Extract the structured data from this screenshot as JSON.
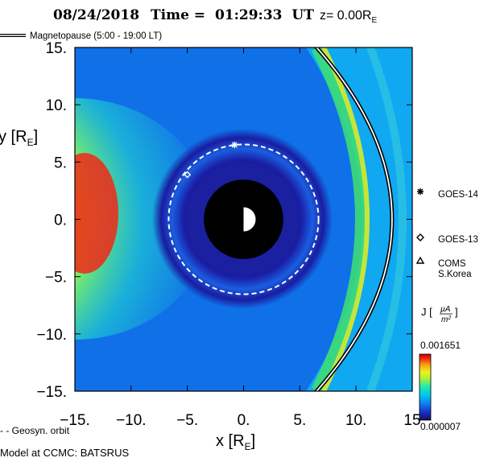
{
  "chart_data": {
    "type": "heatmap",
    "title_date": "08/24/2018",
    "title_time_label": "Time =",
    "title_time_value": "01:29:33",
    "title_time_unit": "UT",
    "title_z_label": "z= 0.00R",
    "title_z_sub": "E",
    "magnetopause_label": "Magnetopause (5:00 - 19:00 LT)",
    "xlabel_main": "x [R",
    "xlabel_sub": "E",
    "xlabel_close": "]",
    "ylabel_main": "y [R",
    "ylabel_sub": "E",
    "ylabel_close": "]",
    "xlim": [
      -15,
      15
    ],
    "ylim": [
      -15,
      15
    ],
    "x_ticks": [
      {
        "value": -15,
        "label": "-15."
      },
      {
        "value": -10,
        "label": "-10."
      },
      {
        "value": -5,
        "label": "-5."
      },
      {
        "value": 0,
        "label": "0."
      },
      {
        "value": 5,
        "label": "5."
      },
      {
        "value": 10,
        "label": "10."
      },
      {
        "value": 15,
        "label": "15"
      }
    ],
    "y_ticks": [
      {
        "value": 15,
        "label": "15."
      },
      {
        "value": 10,
        "label": "10."
      },
      {
        "value": 5,
        "label": "5."
      },
      {
        "value": 0,
        "label": "0."
      },
      {
        "value": -5,
        "label": "-5."
      },
      {
        "value": -10,
        "label": "-10."
      },
      {
        "value": -15,
        "label": "-15."
      }
    ],
    "geosyn_orbit_radius": 6.6,
    "inner_boundary_radius": 3.5,
    "earth_radius": 0.5,
    "magnetopause_subsolar": 13.2,
    "magnetopause_flank_at_15": 6.5,
    "satellites": [
      {
        "name": "GOES-14",
        "marker": "asterisk",
        "x": -0.8,
        "y": 6.5
      },
      {
        "name": "GOES-13",
        "marker": "diamond",
        "x": -5.0,
        "y": 3.9
      },
      {
        "name": "COMS S.Korea",
        "line1": "COMS",
        "line2": "S.Korea",
        "marker": "triangle"
      }
    ],
    "colorbar": {
      "label_main": "J [",
      "label_unit_num": "µA",
      "label_unit_den": "m",
      "label_unit_den_sup": "2",
      "label_close": "]",
      "max_label": "0.001651",
      "min_label": "0.000007",
      "colors": [
        "#1a1050",
        "#1630d0",
        "#1080f0",
        "#00c8f0",
        "#20e8b0",
        "#a0f040",
        "#f0f020",
        "#f8a010",
        "#f02010",
        "#c00000"
      ]
    }
  },
  "legend": {
    "geosyn_label": "- - Geosyn. orbit"
  },
  "footer": {
    "model_label": "Model at CCMC: BATSRUS"
  }
}
